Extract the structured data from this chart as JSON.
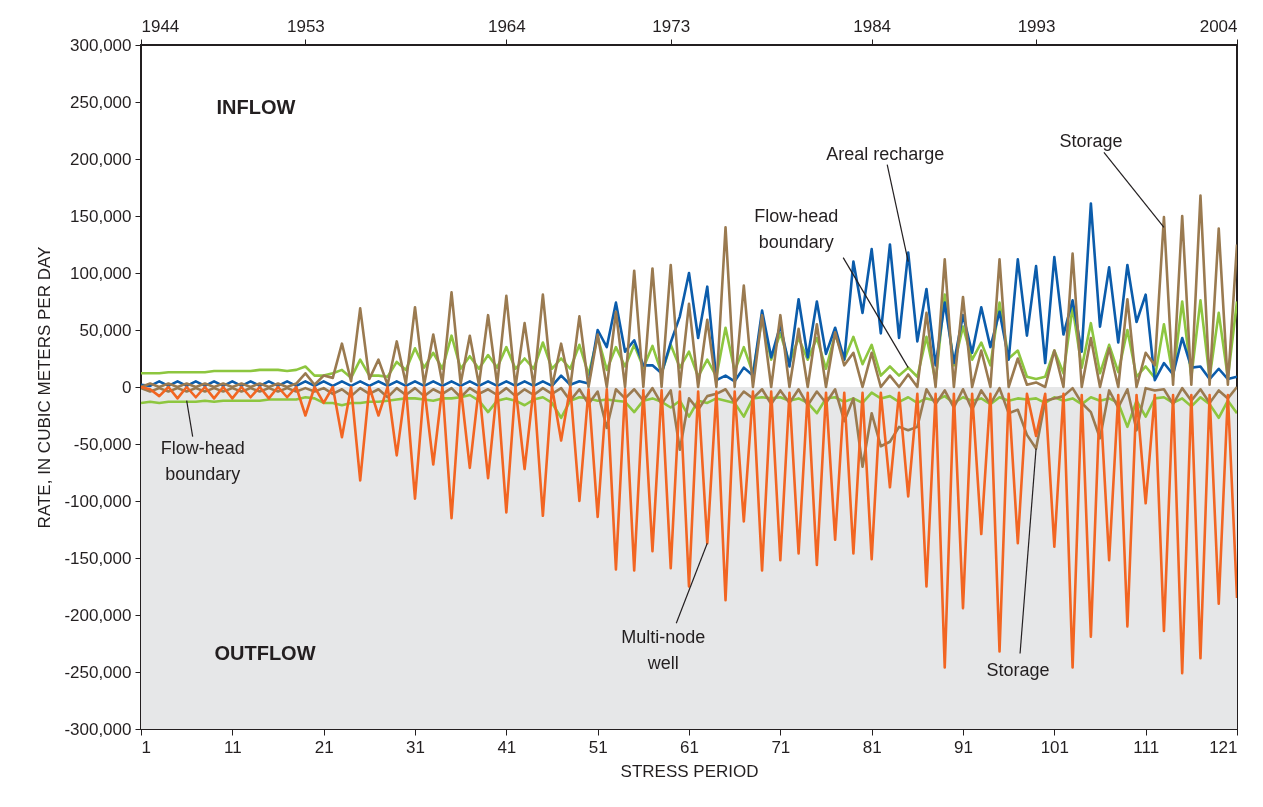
{
  "chart_data": {
    "type": "line",
    "xlabel": "STRESS PERIOD",
    "ylabel": "RATE, IN CUBIC METERS PER DAY",
    "x": [
      1,
      2,
      3,
      4,
      5,
      6,
      7,
      8,
      9,
      10,
      11,
      12,
      13,
      14,
      15,
      16,
      17,
      18,
      19,
      20,
      21,
      22,
      23,
      24,
      25,
      26,
      27,
      28,
      29,
      30,
      31,
      32,
      33,
      34,
      35,
      36,
      37,
      38,
      39,
      40,
      41,
      42,
      43,
      44,
      45,
      46,
      47,
      48,
      49,
      50,
      51,
      52,
      53,
      54,
      55,
      56,
      57,
      58,
      59,
      60,
      61,
      62,
      63,
      64,
      65,
      66,
      67,
      68,
      69,
      70,
      71,
      72,
      73,
      74,
      75,
      76,
      77,
      78,
      79,
      80,
      81,
      82,
      83,
      84,
      85,
      86,
      87,
      88,
      89,
      90,
      91,
      92,
      93,
      94,
      95,
      96,
      97,
      98,
      99,
      100,
      101,
      102,
      103,
      104,
      105,
      106,
      107,
      108,
      109,
      110,
      111,
      112,
      113,
      114,
      115,
      116,
      117,
      118,
      119,
      120,
      121
    ],
    "xlim": [
      1,
      121
    ],
    "xticks": [
      1,
      11,
      21,
      31,
      41,
      51,
      61,
      71,
      81,
      91,
      101,
      111,
      121
    ],
    "x2lim": [
      1944,
      2004
    ],
    "x2ticks": [
      1944,
      1953,
      1964,
      1973,
      1984,
      1993,
      2004
    ],
    "ylim": [
      -300000,
      300000
    ],
    "yticks": [
      {
        "value": -300000,
        "label": "-300,000"
      },
      {
        "value": -250000,
        "label": "-250,000"
      },
      {
        "value": -200000,
        "label": "-200,000"
      },
      {
        "value": -150000,
        "label": "-150,000"
      },
      {
        "value": -100000,
        "label": "-100,000"
      },
      {
        "value": -50000,
        "label": "-50,000"
      },
      0,
      {
        "value": 50000,
        "label": "50,000"
      },
      {
        "value": 100000,
        "label": "100,000"
      },
      {
        "value": 150000,
        "label": "150,000"
      },
      {
        "value": 200000,
        "label": "200,000"
      },
      {
        "value": 250000,
        "label": "250,000"
      },
      {
        "value": 300000,
        "label": "300,000"
      }
    ],
    "bands": [
      {
        "axis": "y",
        "from": -300000,
        "to": 0,
        "color": "#e6e7e8"
      }
    ],
    "line_style": "solid",
    "series": [
      {
        "color": "#8dc63f",
        "values": [
          12000,
          12000,
          12000,
          13000,
          13000,
          13000,
          13000,
          13000,
          14000,
          14000,
          14000,
          14000,
          14000,
          15000,
          15000,
          15000,
          14000,
          15000,
          18000,
          10000,
          10000,
          12000,
          15000,
          8000,
          24000,
          10000,
          10000,
          9000,
          22000,
          15000,
          34000,
          17000,
          30000,
          16000,
          45000,
          16000,
          27000,
          16000,
          28000,
          17000,
          35000,
          16000,
          25000,
          16000,
          39000,
          16000,
          25000,
          16000,
          37000,
          11000,
          44000,
          15000,
          35000,
          18000,
          37000,
          17000,
          36000,
          12000,
          37000,
          17000,
          31000,
          9000,
          24000,
          9000,
          52000,
          14000,
          35000,
          12000,
          60000,
          24000,
          47000,
          21000,
          43000,
          24000,
          43000,
          16000,
          46000,
          24000,
          44000,
          20000,
          37000,
          10000,
          18000,
          10000,
          17000,
          9000,
          44000,
          5000,
          81000,
          19000,
          53000,
          24000,
          39000,
          19000,
          74000,
          25000,
          32000,
          9000,
          7000,
          9000,
          32000,
          12000,
          70000,
          17000,
          56000,
          12000,
          37000,
          13000,
          50000,
          9000,
          18000,
          8000,
          55000,
          9000,
          75000,
          9000,
          76000,
          8000,
          65000,
          8000,
          75000
        ]
      },
      {
        "color": "#8dc63f",
        "values": [
          -14000,
          -13000,
          -14000,
          -13000,
          -13000,
          -13000,
          -13000,
          -12000,
          -13000,
          -12000,
          -12000,
          -12000,
          -12000,
          -12000,
          -11000,
          -11000,
          -11000,
          -11000,
          -9000,
          -10000,
          -14000,
          -14000,
          -16000,
          -14000,
          -14000,
          -13000,
          -13000,
          -12000,
          -11000,
          -10000,
          -10000,
          -11000,
          -12000,
          -10000,
          -10000,
          -9000,
          -7000,
          -12000,
          -22000,
          -12000,
          -10000,
          -12000,
          -16000,
          -11000,
          -9000,
          -14000,
          -27000,
          -12000,
          -9000,
          -10000,
          -12000,
          -11000,
          -12000,
          -13000,
          -22000,
          -12000,
          -10000,
          -13000,
          -18000,
          -12000,
          -26000,
          -12000,
          -14000,
          -10000,
          -12000,
          -14000,
          -26000,
          -10000,
          -9000,
          -10000,
          -9000,
          -12000,
          -10000,
          -14000,
          -23000,
          -10000,
          -9000,
          -13000,
          -10000,
          -14000,
          -5000,
          -10000,
          -8000,
          -13000,
          -9000,
          -14000,
          -10000,
          -12000,
          -8000,
          -14000,
          -9000,
          -12000,
          -10000,
          -15000,
          -9000,
          -12000,
          -10000,
          -11000,
          -10000,
          -14000,
          -9000,
          -12000,
          -10000,
          -15000,
          -9000,
          -12000,
          -10000,
          -14000,
          -35000,
          -12000,
          -26000,
          -10000,
          -9000,
          -14000,
          -10000,
          -17000,
          -9000,
          -15000,
          -27000,
          -12000,
          -23000
        ]
      },
      {
        "color": "#0b5cab",
        "values": [
          2000,
          1000,
          5000,
          1000,
          5000,
          1000,
          5000,
          1000,
          5000,
          1000,
          5000,
          1000,
          5000,
          1000,
          5000,
          1000,
          5000,
          1000,
          5000,
          1000,
          5000,
          1000,
          5000,
          1000,
          5000,
          1000,
          5000,
          1000,
          5000,
          1000,
          5000,
          1000,
          5000,
          1000,
          5000,
          1000,
          5000,
          1000,
          5000,
          1000,
          5000,
          1000,
          5000,
          1000,
          5000,
          1000,
          10000,
          2000,
          5000,
          3000,
          50000,
          35000,
          74000,
          31000,
          41000,
          19000,
          19000,
          12000,
          39000,
          62000,
          100000,
          43000,
          88000,
          6000,
          10000,
          5000,
          17000,
          10000,
          67000,
          26000,
          54000,
          18000,
          77000,
          26000,
          75000,
          29000,
          52000,
          24000,
          110000,
          65000,
          121000,
          47000,
          125000,
          43000,
          118000,
          40000,
          86000,
          19000,
          74000,
          21000,
          63000,
          30000,
          70000,
          35000,
          66000,
          24000,
          112000,
          45000,
          106000,
          21000,
          114000,
          46000,
          76000,
          31000,
          161000,
          53000,
          105000,
          39000,
          107000,
          57000,
          81000,
          6000,
          21000,
          11000,
          43000,
          17000,
          18000,
          7000,
          16000,
          7000,
          9000
        ]
      },
      {
        "color": "#9a7a50",
        "values": [
          0,
          3000,
          0,
          3000,
          0,
          3000,
          0,
          3000,
          0,
          3000,
          0,
          3000,
          0,
          3000,
          0,
          3000,
          0,
          3000,
          12000,
          2000,
          10000,
          8000,
          38000,
          5000,
          69000,
          7000,
          24000,
          2000,
          40000,
          3000,
          70000,
          2000,
          46000,
          3000,
          83000,
          3000,
          45000,
          2000,
          63000,
          2000,
          80000,
          0,
          56000,
          0,
          81000,
          0,
          38000,
          0,
          62000,
          0,
          46000,
          0,
          66000,
          0,
          102000,
          0,
          104000,
          0,
          107000,
          0,
          73000,
          0,
          59000,
          0,
          140000,
          0,
          89000,
          0,
          63000,
          0,
          63000,
          0,
          51000,
          0,
          55000,
          0,
          48000,
          19000,
          30000,
          0,
          30000,
          0,
          10000,
          0,
          11000,
          0,
          65000,
          0,
          112000,
          0,
          79000,
          0,
          32000,
          0,
          112000,
          0,
          25000,
          2000,
          4000,
          0,
          32000,
          0,
          117000,
          0,
          43000,
          0,
          34000,
          0,
          77000,
          0,
          30000,
          19000,
          149000,
          2000,
          150000,
          2000,
          168000,
          2000,
          139000,
          2000,
          125000
        ]
      },
      {
        "color": "#9a7a50",
        "values": [
          -1000,
          -4000,
          -1000,
          -4000,
          -1000,
          -4000,
          -1000,
          -4000,
          -1000,
          -4000,
          -1000,
          -4000,
          -1000,
          -4000,
          -1000,
          -4000,
          -1000,
          -4000,
          -1000,
          -4000,
          -1000,
          -6000,
          -2000,
          -8000,
          -1000,
          -6000,
          -2000,
          -9000,
          -1000,
          -7000,
          -1000,
          -8000,
          -2000,
          -6000,
          -1000,
          -9000,
          -1000,
          -6000,
          -2000,
          -7000,
          -1000,
          -8000,
          -2000,
          -7000,
          -1000,
          -6000,
          -1000,
          -12000,
          -2000,
          -15000,
          -4000,
          -36000,
          -2000,
          -10000,
          -2000,
          -12000,
          -1000,
          -15000,
          -3000,
          -55000,
          -10000,
          -20000,
          -8000,
          -6000,
          -2000,
          -14000,
          -4000,
          -10000,
          -2000,
          -15000,
          -3000,
          -14000,
          -2000,
          -16000,
          -4000,
          -14000,
          -2000,
          -30000,
          -10000,
          -70000,
          -23000,
          -52000,
          -48000,
          -35000,
          -38000,
          -35000,
          -2000,
          -15000,
          -3000,
          -18000,
          -2000,
          -20000,
          -3000,
          -15000,
          -1000,
          -23000,
          -20000,
          -42000,
          -54000,
          -12000,
          -10000,
          -8000,
          -1000,
          -14000,
          -22000,
          -45000,
          -3000,
          -18000,
          -2000,
          -38000,
          -1000,
          -3000,
          -2000,
          -15000,
          -1000,
          -12000,
          -2000,
          -14000,
          -3000,
          -10000,
          0
        ]
      },
      {
        "color": "#f26522",
        "values": [
          0,
          -2000,
          -8000,
          0,
          -10000,
          0,
          -9000,
          0,
          -10000,
          0,
          -10000,
          0,
          -9000,
          0,
          -10000,
          0,
          -9000,
          0,
          -25000,
          0,
          -14000,
          0,
          -44000,
          0,
          -82000,
          0,
          -25000,
          0,
          -60000,
          0,
          -98000,
          0,
          -68000,
          0,
          -115000,
          0,
          -71000,
          0,
          -80000,
          0,
          -110000,
          0,
          -72000,
          0,
          -113000,
          0,
          -47000,
          0,
          -100000,
          -2000,
          -114000,
          -2000,
          -160000,
          -2000,
          -161000,
          -3000,
          -144000,
          -3000,
          -159000,
          -4000,
          -175000,
          -4000,
          -137000,
          -4000,
          -187000,
          -4000,
          -118000,
          -4000,
          -161000,
          -4000,
          -152000,
          -5000,
          -146000,
          -5000,
          -156000,
          -5000,
          -134000,
          -5000,
          -146000,
          -5000,
          -151000,
          -5000,
          -88000,
          -5000,
          -96000,
          -6000,
          -175000,
          -6000,
          -246000,
          -6000,
          -194000,
          -6000,
          -129000,
          -6000,
          -232000,
          -6000,
          -137000,
          -6000,
          -43000,
          -6000,
          -140000,
          -6000,
          -246000,
          -7000,
          -219000,
          -7000,
          -152000,
          -7000,
          -210000,
          -7000,
          -102000,
          -7000,
          -214000,
          -7000,
          -251000,
          -7000,
          -238000,
          -7000,
          -190000,
          -7000,
          -185000
        ]
      }
    ],
    "annotations": [
      "INFLOW",
      "OUTFLOW",
      {
        "text": "Areal recharge",
        "x": 85,
        "y": 110000
      },
      {
        "text": "Flow-head boundary",
        "x": 85,
        "y": 17000
      },
      {
        "text": "Storage",
        "x": 113,
        "y": 140000
      },
      {
        "text": "Flow-head boundary",
        "x": 6,
        "y": -12000
      },
      {
        "text": "Multi-node well",
        "x": 63,
        "y": -137000
      },
      {
        "text": "Storage",
        "x": 99,
        "y": -54000
      }
    ]
  }
}
